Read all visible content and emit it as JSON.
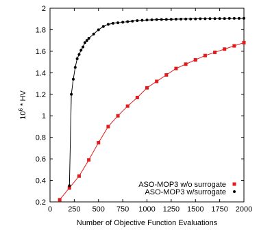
{
  "chart_data": {
    "type": "line",
    "xlabel": "Number of Objective Function Evaluations",
    "ylabel_base": "10",
    "ylabel_exp": "6",
    "ylabel_rest": " * HV",
    "xlim": [
      0,
      2000
    ],
    "ylim": [
      0.2,
      2.0
    ],
    "xticks": [
      0,
      250,
      500,
      750,
      1000,
      1250,
      1500,
      1750,
      2000
    ],
    "yticks": [
      0.2,
      0.4,
      0.6,
      0.8,
      1.0,
      1.2,
      1.4,
      1.6,
      1.8,
      2.0
    ],
    "xtick_labels": [
      "0",
      "250",
      "500",
      "750",
      "1000",
      "1250",
      "1500",
      "1750",
      "2000"
    ],
    "ytick_labels": [
      "0.2",
      "0.4",
      "0.6",
      "0.8",
      "1",
      "1.2",
      "1.4",
      "1.6",
      "1.8",
      "2"
    ],
    "grid": false,
    "legend_position": "bottom-right",
    "series": [
      {
        "name": "ASO-MOP3 w/o surrogate",
        "color": "#e41a1c",
        "marker": "square",
        "x": [
          100,
          200,
          300,
          400,
          500,
          600,
          700,
          800,
          900,
          1000,
          1100,
          1200,
          1300,
          1400,
          1500,
          1600,
          1700,
          1800,
          1900,
          2000
        ],
        "y": [
          0.22,
          0.33,
          0.44,
          0.59,
          0.75,
          0.9,
          1.0,
          1.09,
          1.17,
          1.26,
          1.32,
          1.38,
          1.44,
          1.48,
          1.52,
          1.56,
          1.59,
          1.62,
          1.65,
          1.68
        ]
      },
      {
        "name": "ASO-MOP3 w/surrogate",
        "color": "#000000",
        "marker": "circle",
        "x": [
          200,
          220,
          240,
          260,
          280,
          300,
          320,
          340,
          360,
          380,
          400,
          450,
          500,
          550,
          600,
          650,
          700,
          750,
          800,
          850,
          900,
          950,
          1000,
          1050,
          1100,
          1150,
          1200,
          1250,
          1300,
          1350,
          1400,
          1450,
          1500,
          1550,
          1600,
          1650,
          1700,
          1750,
          1800,
          1850,
          1900,
          1950,
          2000
        ],
        "y": [
          0.35,
          1.2,
          1.34,
          1.45,
          1.53,
          1.57,
          1.61,
          1.64,
          1.68,
          1.7,
          1.72,
          1.76,
          1.8,
          1.83,
          1.85,
          1.86,
          1.865,
          1.87,
          1.875,
          1.88,
          1.885,
          1.888,
          1.89,
          1.892,
          1.894,
          1.895,
          1.896,
          1.897,
          1.898,
          1.899,
          1.9,
          1.9,
          1.901,
          1.902,
          1.902,
          1.903,
          1.903,
          1.904,
          1.904,
          1.905,
          1.905,
          1.905,
          1.906
        ]
      }
    ]
  }
}
